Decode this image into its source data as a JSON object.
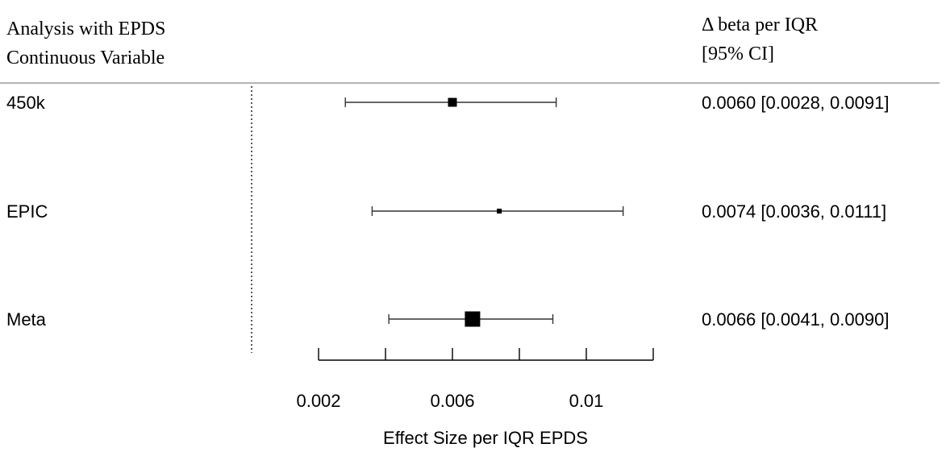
{
  "chart_data": {
    "type": "forest",
    "header_left": [
      "Analysis with EPDS",
      "Continuous Variable"
    ],
    "header_right": [
      "Δ beta per IQR",
      "[95% CI]"
    ],
    "xlabel": "Effect Size per IQR EPDS",
    "xlim": [
      0.0,
      0.0122
    ],
    "xticks": [
      0.002,
      0.004,
      0.006,
      0.008,
      0.01,
      0.012
    ],
    "xtick_labels": [
      "0.002",
      "",
      "0.006",
      "",
      "0.01",
      ""
    ],
    "null_line": 0,
    "rows": [
      {
        "label": "450k",
        "estimate": 0.006,
        "lower": 0.0028,
        "upper": 0.0091,
        "weight": "medium",
        "ci_text": "0.0060 [0.0028, 0.0091]"
      },
      {
        "label": "EPIC",
        "estimate": 0.0074,
        "lower": 0.0036,
        "upper": 0.0111,
        "weight": "small",
        "ci_text": "0.0074 [0.0036, 0.0111]"
      },
      {
        "label": "Meta",
        "estimate": 0.0066,
        "lower": 0.0041,
        "upper": 0.009,
        "weight": "large",
        "ci_text": "0.0066 [0.0041, 0.0090]"
      }
    ],
    "colors": {
      "ink": "#000000",
      "lines": "#333333",
      "separator": "#888888"
    }
  }
}
